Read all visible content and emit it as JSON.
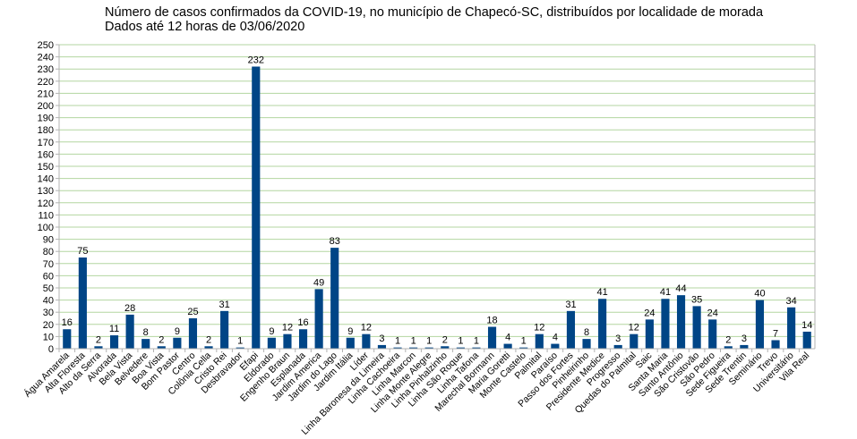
{
  "chart_data": {
    "type": "bar",
    "title": "Número de casos confirmados da COVID-19, no município de Chapecó-SC, distribuídos por localidade de morada",
    "subtitle": "Dados até 12 horas de 03/06/2020",
    "xlabel": "",
    "ylabel": "",
    "ylim": [
      0,
      250
    ],
    "yticks": [
      0,
      10,
      20,
      30,
      40,
      50,
      60,
      70,
      80,
      90,
      100,
      110,
      120,
      130,
      140,
      150,
      160,
      170,
      180,
      190,
      200,
      210,
      220,
      230,
      240,
      250
    ],
    "grid": true,
    "legend": "none",
    "bar_color": "#004586",
    "grid_color": "#b3d6a0",
    "categories": [
      "Água Amarela",
      "Alta Floresta",
      "Alto da Serra",
      "Alvorada",
      "Bela Vista",
      "Belvedere",
      "Boa Vista",
      "Bom Pastor",
      "Centro",
      "Colônia Cella",
      "Cristo Rei",
      "Desbravador",
      "Efapi",
      "Eldorado",
      "Engenho Braun",
      "Esplanada",
      "Jardim America",
      "Jardim do Lago",
      "Jardim Itália",
      "Líder",
      "Linha Baronesa da Limeira",
      "Linha Cachoeira",
      "Linha Marcon",
      "Linha Monte Alegre",
      "Linha Pinhalzinho",
      "Linha São Roque",
      "Linha Tafona",
      "Marechal Bormann",
      "Maria Goretti",
      "Monte Castelo",
      "Palmital",
      "Paraíso",
      "Passo dos Fortes",
      "Pinheirinho",
      "Presidente Medice",
      "Progresso",
      "Quedas do Palmital",
      "Saic",
      "Santa Maria",
      "Santo Antônio",
      "São Cristovão",
      "São Pedro",
      "Sede Figueira",
      "Sede Trentin",
      "Seminário",
      "Trevo",
      "Universitário",
      "Vila Real"
    ],
    "values": [
      16,
      75,
      2,
      11,
      28,
      8,
      2,
      9,
      25,
      2,
      31,
      1,
      232,
      9,
      12,
      16,
      49,
      83,
      9,
      12,
      3,
      1,
      1,
      1,
      2,
      1,
      1,
      18,
      4,
      1,
      12,
      4,
      31,
      8,
      41,
      3,
      12,
      24,
      41,
      44,
      35,
      24,
      2,
      3,
      40,
      7,
      34,
      14
    ]
  }
}
